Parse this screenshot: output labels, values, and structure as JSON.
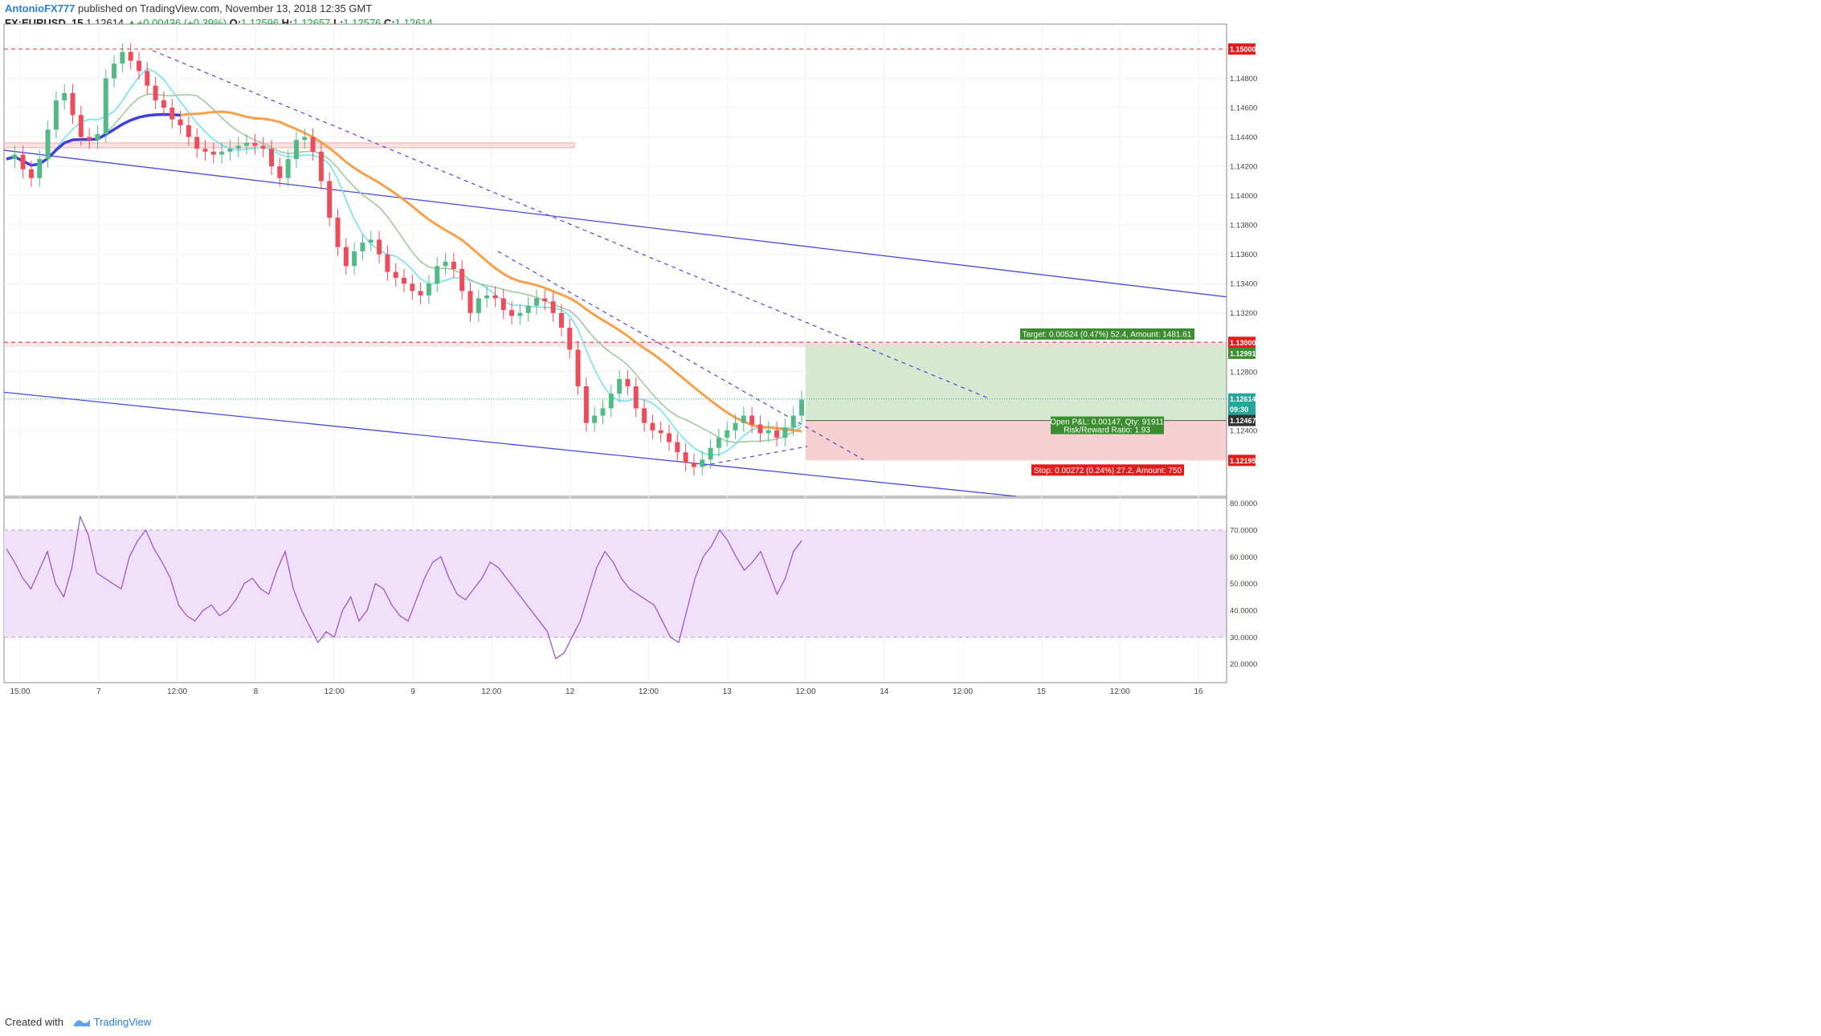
{
  "header": {
    "author": "AntonioFX777",
    "published": "published on TradingView.com, November 13, 2018 12:35 GMT",
    "symbol": "FX:EURUSD, 15",
    "last": "1.12614",
    "change": "+0.00436 (+0.39%)",
    "o_label": "O:",
    "o": "1.12596",
    "h_label": "H:",
    "h": "1.12657",
    "l_label": "L:",
    "l": "1.12576",
    "c_label": "C:",
    "c": "1.12614"
  },
  "footer": {
    "created_with": "Created with",
    "brand": "TradingView"
  },
  "colors": {
    "up": "#26a69a",
    "down": "#ef5350",
    "candle_up": "#53b987",
    "candle_down": "#eb4d5c",
    "ma_fast": "#6de0f0",
    "ma_mid": "#9fc59a",
    "ma_slow": "#f7a04b",
    "ma_long": "#3f3fd9",
    "channel": "#4a4ad6",
    "trend_dash": "#4a4ad6",
    "resistance": "#e64a4a",
    "rsi": "#9b4dca",
    "rsi_band": "#f0e0fa",
    "target_fill": "#d5e8d0",
    "stop_fill": "#f6cfd1"
  },
  "chart_data": [
    {
      "type": "line",
      "title": "FX:EURUSD, 15",
      "y_ticks": [
        "1.14800",
        "1.14600",
        "1.14400",
        "1.14200",
        "1.14000",
        "1.13800",
        "1.13600",
        "1.13400",
        "1.13200",
        "1.12800",
        "1.12400"
      ],
      "y_range": [
        1.1195,
        1.1517
      ],
      "x_ticks": [
        "15:00",
        "7",
        "12:00",
        "8",
        "12:00",
        "9",
        "12:00",
        "12",
        "12:00",
        "13",
        "12:00",
        "14",
        "12:00",
        "15",
        "12:00",
        "16"
      ],
      "price_labels": [
        {
          "value": "1.15000",
          "kind": "red"
        },
        {
          "value": "1.13000",
          "kind": "red"
        },
        {
          "value": "1.12991",
          "kind": "green"
        },
        {
          "value": "1.12614",
          "kind": "teal"
        },
        {
          "value": "09:30",
          "kind": "teal"
        },
        {
          "value": "1.12467",
          "kind": "dark"
        },
        {
          "value": "1.12195",
          "kind": "red"
        }
      ],
      "levels": {
        "resistance_top": 1.15,
        "resistance_mid": 1.13,
        "target": 1.12991,
        "entry": 1.12467,
        "stop": 1.12195,
        "last": 1.12614
      },
      "series": [
        {
          "values": [
            1.1425,
            1.1428,
            1.1418,
            1.1412,
            1.1425,
            1.1445,
            1.1465,
            1.147,
            1.1455,
            1.144,
            1.1438,
            1.1442,
            1.148,
            1.149,
            1.1498,
            1.1492,
            1.1485,
            1.1475,
            1.1465,
            1.146,
            1.1452,
            1.1448,
            1.144,
            1.1432,
            1.143,
            1.1428,
            1.143,
            1.1432,
            1.1434,
            1.1436,
            1.1434,
            1.1432,
            1.142,
            1.1412,
            1.1425,
            1.1438,
            1.144,
            1.143,
            1.141,
            1.1385,
            1.1365,
            1.1352,
            1.1362,
            1.1368,
            1.137,
            1.136,
            1.1348,
            1.1344,
            1.134,
            1.1335,
            1.1332,
            1.134,
            1.1352,
            1.1355,
            1.135,
            1.1335,
            1.132,
            1.133,
            1.1332,
            1.133,
            1.1322,
            1.1318,
            1.132,
            1.1325,
            1.133,
            1.1328,
            1.132,
            1.131,
            1.1295,
            1.127,
            1.1245,
            1.125,
            1.1255,
            1.1265,
            1.1275,
            1.127,
            1.1255,
            1.1245,
            1.124,
            1.1238,
            1.1232,
            1.1225,
            1.1218,
            1.1215,
            1.122,
            1.1228,
            1.1235,
            1.124,
            1.1245,
            1.125,
            1.1244,
            1.1238,
            1.124,
            1.1235,
            1.1242,
            1.125,
            1.1261
          ]
        },
        {
          "name": "RSI",
          "values": [
            63,
            58,
            52,
            48,
            55,
            62,
            50,
            45,
            56,
            75,
            68,
            54,
            52,
            50,
            48,
            60,
            66,
            70,
            63,
            58,
            52,
            42,
            38,
            36,
            40,
            42,
            38,
            40,
            44,
            50,
            52,
            48,
            46,
            55,
            62,
            48,
            40,
            34,
            28,
            32,
            30,
            40,
            45,
            36,
            40,
            50,
            48,
            42,
            38,
            36,
            44,
            52,
            58,
            60,
            52,
            46,
            44,
            48,
            52,
            58,
            56,
            52,
            48,
            44,
            40,
            36,
            32,
            22,
            24,
            30,
            36,
            46,
            56,
            62,
            58,
            52,
            48,
            46,
            44,
            42,
            36,
            30,
            28,
            40,
            52,
            60,
            64,
            70,
            66,
            60,
            55,
            58,
            62,
            54,
            46,
            52,
            62,
            66
          ]
        }
      ]
    },
    {
      "type": "line",
      "title": "RSI",
      "y_ticks": [
        "80.0000",
        "70.0000",
        "60.0000",
        "50.0000",
        "40.0000",
        "30.0000",
        "20.0000"
      ],
      "y_range": [
        13,
        82
      ],
      "bands": [
        30,
        70
      ]
    }
  ],
  "position": {
    "target_label": "Target: 0.00524 (0.47%) 52.4, Amount: 1481.61",
    "open_label_line1": "Open P&L: 0.00147, Qty: 91911",
    "open_label_line2": "Risk/Reward Ratio: 1.93",
    "stop_label": "Stop: 0.00272 (0.24%) 27.2, Amount: 750"
  }
}
